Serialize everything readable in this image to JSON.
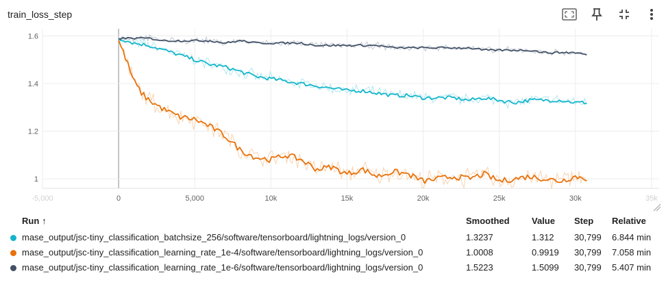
{
  "title": "train_loss_step",
  "toolbar": {
    "icons": [
      "fit-to-data-icon",
      "pin-icon",
      "collapse-icon",
      "more-vert-icon"
    ]
  },
  "table": {
    "headers": {
      "run": "Run",
      "sort_indicator": "↑",
      "smoothed": "Smoothed",
      "value": "Value",
      "step": "Step",
      "relative": "Relative"
    },
    "rows": [
      {
        "color": "#12b5cb",
        "run": "mase_output/jsc-tiny_classification_batchsize_256/software/tensorboard/lightning_logs/version_0",
        "smoothed": "1.3237",
        "value": "1.312",
        "step": "30,799",
        "relative": "6.844 min"
      },
      {
        "color": "#e8710a",
        "run": "mase_output/jsc-tiny_classification_learning_rate_1e-4/software/tensorboard/lightning_logs/version_0",
        "smoothed": "1.0008",
        "value": "0.9919",
        "step": "30,799",
        "relative": "7.058 min"
      },
      {
        "color": "#425066",
        "run": "mase_output/jsc-tiny_classification_learning_rate_1e-6/software/tensorboard/lightning_logs/version_0",
        "smoothed": "1.5223",
        "value": "1.5099",
        "step": "30,799",
        "relative": "5.407 min"
      }
    ]
  },
  "chart_data": {
    "type": "line",
    "title": "train_loss_step",
    "xlabel": "",
    "ylabel": "",
    "xlim": [
      -5000,
      35500
    ],
    "ylim": [
      0.96,
      1.63
    ],
    "x_ticks": [
      {
        "value": -5000,
        "label": "-5,000",
        "faded": true
      },
      {
        "value": 0,
        "label": "0"
      },
      {
        "value": 5000,
        "label": "5,000"
      },
      {
        "value": 10000,
        "label": "10k"
      },
      {
        "value": 15000,
        "label": "15k"
      },
      {
        "value": 20000,
        "label": "20k"
      },
      {
        "value": 25000,
        "label": "25k"
      },
      {
        "value": 30000,
        "label": "30k"
      },
      {
        "value": 35000,
        "label": "35k",
        "faded": true
      }
    ],
    "y_ticks": [
      {
        "value": 1.0,
        "label": "1"
      },
      {
        "value": 1.2,
        "label": "1.2"
      },
      {
        "value": 1.4,
        "label": "1.4"
      },
      {
        "value": 1.6,
        "label": "1.6"
      }
    ],
    "grid": true,
    "series": [
      {
        "name": "mase_output/jsc-tiny_classification_batchsize_256/software/tensorboard/lightning_logs/version_0",
        "color": "#12b5cb",
        "raw_color": "#a8e4ee",
        "x": [
          0,
          1000,
          2000,
          3000,
          4000,
          5000,
          6000,
          7000,
          8000,
          9000,
          10000,
          11000,
          12000,
          13000,
          14000,
          15000,
          16000,
          17000,
          18000,
          19000,
          20000,
          21000,
          22000,
          23000,
          24000,
          25000,
          26000,
          27000,
          28000,
          29000,
          30000,
          30799
        ],
        "y": [
          1.59,
          1.57,
          1.56,
          1.54,
          1.52,
          1.5,
          1.48,
          1.47,
          1.45,
          1.43,
          1.42,
          1.41,
          1.4,
          1.39,
          1.38,
          1.37,
          1.37,
          1.36,
          1.35,
          1.35,
          1.34,
          1.34,
          1.34,
          1.33,
          1.34,
          1.33,
          1.32,
          1.33,
          1.33,
          1.33,
          1.32,
          1.32
        ]
      },
      {
        "name": "mase_output/jsc-tiny_classification_learning_rate_1e-4/software/tensorboard/lightning_logs/version_0",
        "color": "#e8710a",
        "raw_color": "#f7cfa8",
        "x": [
          0,
          500,
          1000,
          1500,
          2000,
          3000,
          4000,
          5000,
          6000,
          7000,
          8000,
          9000,
          10000,
          11000,
          12000,
          13000,
          14000,
          15000,
          16000,
          17000,
          18000,
          19000,
          20000,
          21000,
          22000,
          23000,
          24000,
          25000,
          26000,
          27000,
          28000,
          29000,
          30000,
          30799
        ],
        "y": [
          1.58,
          1.5,
          1.41,
          1.36,
          1.33,
          1.29,
          1.26,
          1.25,
          1.22,
          1.18,
          1.12,
          1.09,
          1.08,
          1.1,
          1.08,
          1.04,
          1.05,
          1.02,
          1.04,
          1.01,
          1.03,
          1.02,
          0.99,
          1.0,
          1.01,
          1.0,
          1.02,
          0.99,
          1.0,
          1.01,
          1.0,
          0.99,
          1.01,
          1.0
        ]
      },
      {
        "name": "mase_output/jsc-tiny_classification_learning_rate_1e-6/software/tensorboard/lightning_logs/version_0",
        "color": "#425066",
        "raw_color": "#b8c0cc",
        "x": [
          0,
          1000,
          2000,
          3000,
          4000,
          5000,
          6000,
          7000,
          8000,
          9000,
          10000,
          11000,
          12000,
          13000,
          14000,
          15000,
          16000,
          17000,
          18000,
          19000,
          20000,
          21000,
          22000,
          23000,
          24000,
          25000,
          26000,
          27000,
          28000,
          29000,
          30000,
          30799
        ],
        "y": [
          1.59,
          1.59,
          1.59,
          1.58,
          1.58,
          1.58,
          1.58,
          1.57,
          1.58,
          1.57,
          1.57,
          1.57,
          1.57,
          1.56,
          1.56,
          1.56,
          1.56,
          1.56,
          1.55,
          1.55,
          1.55,
          1.55,
          1.55,
          1.55,
          1.54,
          1.54,
          1.54,
          1.54,
          1.53,
          1.53,
          1.53,
          1.52
        ]
      }
    ]
  }
}
